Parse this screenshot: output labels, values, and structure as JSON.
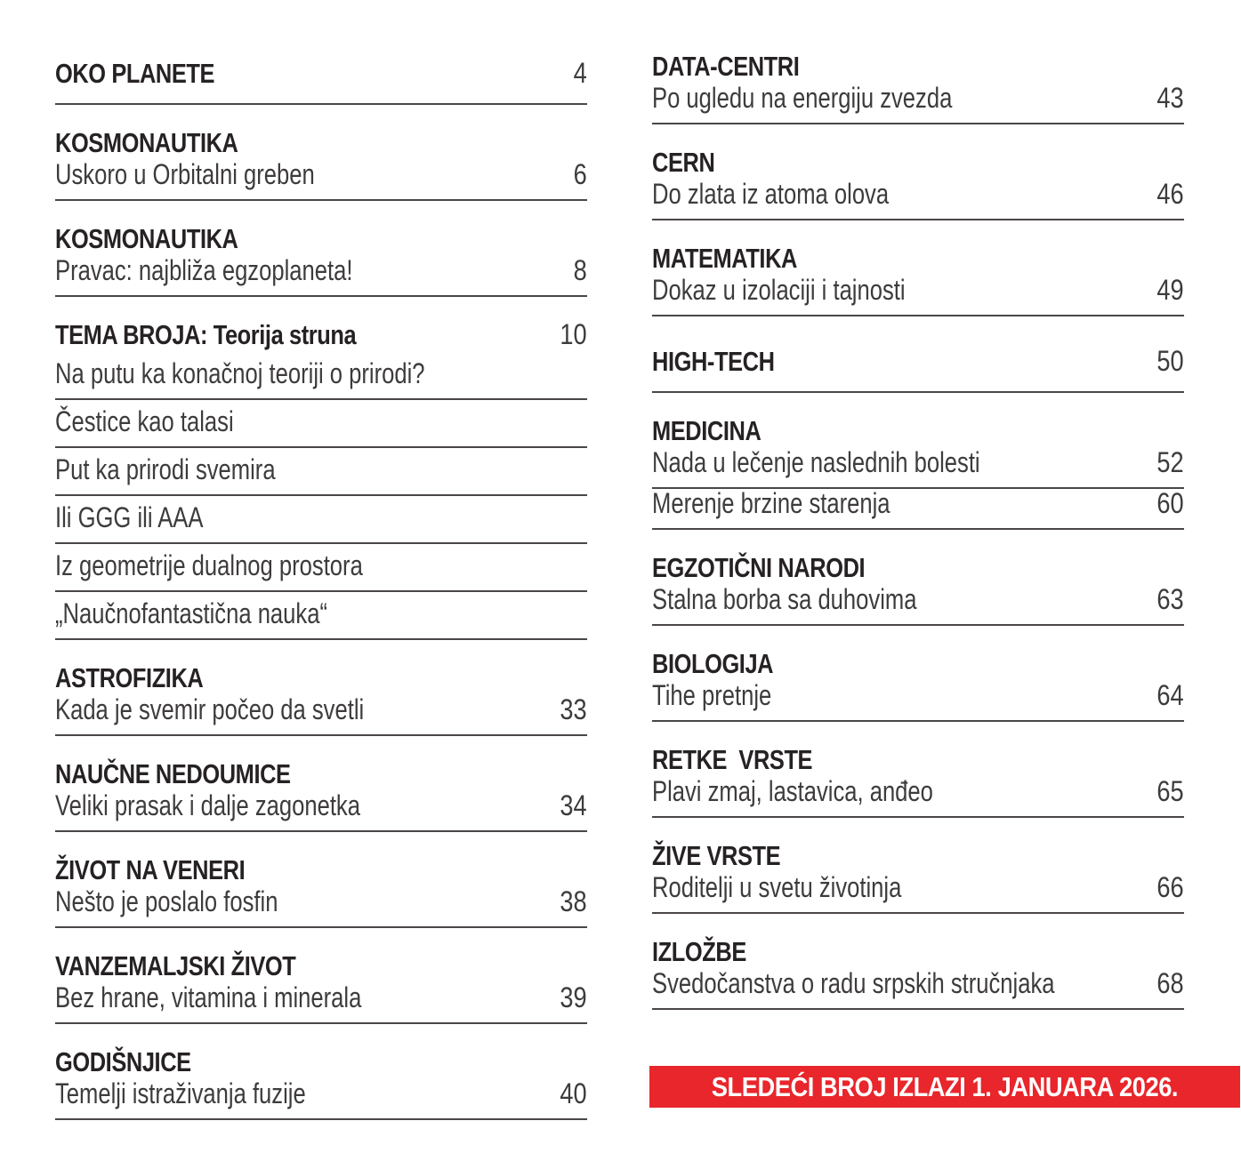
{
  "page": {
    "background": "#ffffff",
    "heading_color": "#262223",
    "body_color": "#3e3b3c",
    "rule_color": "#4a4647"
  },
  "toc": {
    "columns": [
      {
        "sections": [
          {
            "title": "OKO PLANETE",
            "page": "4",
            "title_rule": true,
            "items": []
          },
          {
            "title": "KOSMONAUTIKA",
            "items": [
              {
                "text": "Uskoro u Orbitalni greben",
                "page": "6"
              }
            ]
          },
          {
            "title": "KOSMONAUTIKA",
            "items": [
              {
                "text": "Pravac: najbliža egzoplaneta!",
                "page": "8"
              }
            ]
          },
          {
            "title": "TEMA BROJA: Teorija struna",
            "page": "10",
            "items": [
              {
                "text": "Na putu ka konačnoj teoriji o prirodi?"
              },
              {
                "text": "Čestice kao talasi"
              },
              {
                "text": "Put ka prirodi svemira"
              },
              {
                "text": "Ili GGG ili AAA"
              },
              {
                "text": "Iz geometrije dualnog prostora"
              },
              {
                "text": "„Naučnofantastična nauka“"
              }
            ]
          },
          {
            "title": "ASTROFIZIKA",
            "items": [
              {
                "text": "Kada je svemir počeo da svetli",
                "page": "33"
              }
            ]
          },
          {
            "title": "NAUČNE NEDOUMICE",
            "items": [
              {
                "text": "Veliki prasak i dalje zagonetka",
                "page": "34"
              }
            ]
          },
          {
            "title": "ŽIVOT NA VENERI",
            "items": [
              {
                "text": "Nešto je poslalo fosfin",
                "page": "38"
              }
            ]
          },
          {
            "title": "VANZEMALJSKI ŽIVOT",
            "items": [
              {
                "text": "Bez hrane, vitamina i minerala",
                "page": "39"
              }
            ]
          },
          {
            "title": "GODIŠNJICE",
            "items": [
              {
                "text": "Temelji istraživanja fuzije",
                "page": "40"
              }
            ]
          }
        ]
      },
      {
        "sections": [
          {
            "title": "DATA-CENTRI",
            "items": [
              {
                "text": "Po ugledu na energiju zvezda",
                "page": "43"
              }
            ]
          },
          {
            "title": "CERN",
            "items": [
              {
                "text": "Do zlata iz atoma olova",
                "page": "46"
              }
            ]
          },
          {
            "title": "MATEMATIKA",
            "items": [
              {
                "text": "Dokaz u izolaciji i tajnosti",
                "page": "49"
              }
            ]
          },
          {
            "title": "HIGH-TECH",
            "page": "50",
            "title_rule": true,
            "items": []
          },
          {
            "title": "MEDICINA",
            "items": [
              {
                "text": "Nada u lečenje naslednih bolesti",
                "page": "52"
              },
              {
                "text": "Merenje brzine starenja",
                "page": "60"
              }
            ]
          },
          {
            "title": "EGZOTIČNI NARODI",
            "items": [
              {
                "text": "Stalna borba sa duhovima",
                "page": "63"
              }
            ]
          },
          {
            "title": "BIOLOGIJA",
            "items": [
              {
                "text": "Tihe pretnje",
                "page": "64"
              }
            ]
          },
          {
            "title": "RETKE  VRSTE",
            "items": [
              {
                "text": "Plavi zmaj, lastavica, anđeo",
                "page": "65"
              }
            ]
          },
          {
            "title": "ŽIVE VRSTE",
            "items": [
              {
                "text": "Roditelji u svetu životinja",
                "page": "66"
              }
            ]
          },
          {
            "title": "IZLOŽBE",
            "items": [
              {
                "text": "Svedočanstva o radu srpskih stručnjaka",
                "page": "68"
              }
            ]
          }
        ]
      }
    ]
  },
  "banner": {
    "label": "SLEDEĆI BROJ IZLAZI 1. JANUARA 2026.",
    "background": "#e8262c",
    "color": "#ffffff"
  }
}
